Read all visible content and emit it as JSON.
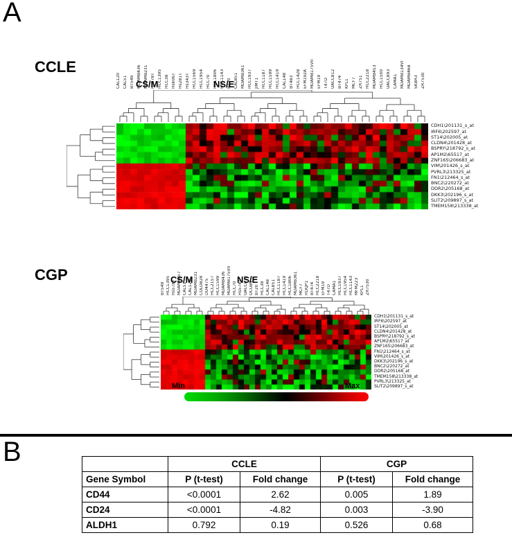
{
  "panel_a": {
    "label": "A",
    "scale": {
      "min": "Min",
      "max": "Max"
    },
    "ccle": {
      "title": "CCLE",
      "group_left": "CS/M",
      "group_right": "NS/E",
      "csm_sample_count": 10,
      "epithelial_gene_count": 7,
      "expression_pattern": {
        "csm_epithelial_genes": "low (bright green)",
        "csm_mesenchymal_genes": "high (bright red)",
        "nse_epithelial_genes": "mostly high (red/dark mix)",
        "nse_mesenchymal_genes": "mostly low (green/dark mix)"
      },
      "samples": [
        "CAL120",
        "CAL51",
        "BT549",
        "MDAMB436",
        "MDAMB231",
        "Hs578T",
        "HCC1395",
        "HCC38",
        "Hs606T",
        "Hs281T",
        "Hs343T",
        "HCC1569",
        "HCC1954",
        "HCC70",
        "HCC1806",
        "HCC1143",
        "BT20",
        "CAL851",
        "MDAMB361",
        "HCC1937",
        "JIMT1",
        "HCC1187",
        "HCC1599",
        "HCC1419",
        "CAL148",
        "BT483",
        "HCC1428",
        "EFM192A",
        "MDAMB175VII",
        "EFM19",
        "T47D",
        "UACC812",
        "BT474",
        "KPL1",
        "MCF7",
        "ZR751",
        "HCC2218",
        "MDAMB453",
        "HCC1500",
        "UACC893",
        "CAMA1",
        "MDAMB134VI",
        "MDAMB468",
        "SKBR3",
        "ZR7530"
      ],
      "genes": [
        "CDH1\\201131_s_at",
        "IRF6\\202597_at",
        "ST14\\202005_at",
        "CLDN4\\201428_at",
        "BSPRY\\218792_s_at",
        "AP1M2\\65517_at",
        "ZNF165\\206683_at",
        "VIM\\201426_s_at",
        "PVRL3\\213325_at",
        "FN1\\212464_s_at",
        "BNC2\\220272_at",
        "DDR2\\205168_at",
        "DKK3\\202196_s_at",
        "SLIT2\\209897_s_at",
        "TMEM158\\213338_at"
      ]
    },
    "cgp": {
      "title": "CGP",
      "group_left": "CS/M",
      "group_right": "NS/E",
      "csm_sample_count": 8,
      "epithelial_gene_count": 7,
      "expression_pattern": {
        "csm_epithelial_genes": "low (bright green)",
        "csm_mesenchymal_genes": "high (bright red)",
        "nse_epithelial_genes": "mostly high (red/dark mix)",
        "nse_mesenchymal_genes": "mostly low (green/dark mix)"
      },
      "samples": [
        "BT549",
        "HCC1395",
        "Hs578T",
        "MDAMB157",
        "CAL51",
        "CAL120",
        "MDAMB231",
        "COLO824",
        "DU4475",
        "HCC2157",
        "HCC1599",
        "MDAMB436",
        "MDAMB175VII",
        "HCC70",
        "Hs574T",
        "UACC812",
        "OCUB1",
        "BT20",
        "HCC38",
        "CAL148",
        "CAL851",
        "HCC1187",
        "HCC1419",
        "HCC1806",
        "MDAMB361",
        "MCF7",
        "HDQP1",
        "BT474",
        "HCC2218",
        "EFM19",
        "T47D",
        "CAMA1",
        "HCC1937",
        "HCC1954",
        "HCC1143",
        "MFM223",
        "KPL1",
        "ZR7530"
      ],
      "genes": [
        "CDH1\\201131_s_at",
        "IRF6\\202597_at",
        "ST14\\202005_at",
        "CLDN4\\201428_at",
        "BSPRY\\218792_s_at",
        "AP1M2\\65517_at",
        "ZNF165\\206683_at",
        "FN1\\212464_s_at",
        "VIM\\201426_s_at",
        "DKK3\\202196_s_at",
        "BNC2\\220272_at",
        "DDR2\\205168_at",
        "TMEM158\\213338_at",
        "PVRL3\\213325_at",
        "SLIT2\\209897_s_at"
      ]
    },
    "heatmap_colors": {
      "low": "#00ff00",
      "mid": "#000000",
      "high": "#ff0000"
    }
  },
  "panel_b": {
    "label": "B",
    "table": {
      "group_headers": [
        "",
        "CCLE",
        "CGP"
      ],
      "col_headers": [
        "Gene Symbol",
        "P (t-test)",
        "Fold change",
        "P (t-test)",
        "Fold change"
      ],
      "rows": [
        [
          "CD44",
          "<0.0001",
          "2.62",
          "0.005",
          "1.89"
        ],
        [
          "CD24",
          "<0.0001",
          "-4.82",
          "0.003",
          "-3.90"
        ],
        [
          "ALDH1",
          "0.792",
          "0.19",
          "0.526",
          "0.68"
        ]
      ]
    }
  }
}
